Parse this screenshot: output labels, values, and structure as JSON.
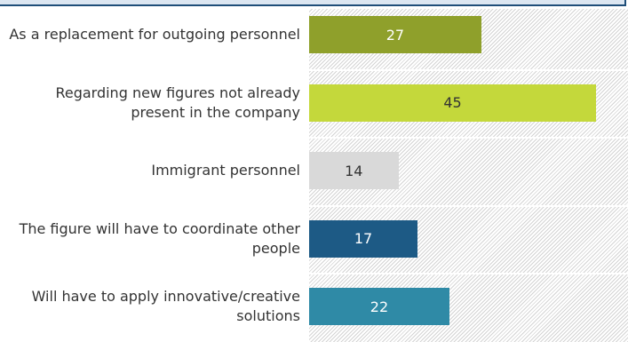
{
  "chart_data": {
    "type": "bar",
    "orientation": "horizontal",
    "categories": [
      "As a replacement for outgoing personnel",
      "Regarding new figures not already present in the company",
      "Immigrant personnel",
      "The figure will have to coordinate other people",
      "Will have to apply innovative/creative solutions"
    ],
    "values": [
      27,
      45,
      14,
      17,
      22
    ],
    "colors": [
      "#8fa02b",
      "#c4d83b",
      "#d9d9d9",
      "#1d5a85",
      "#2f8aa6"
    ],
    "xlim": [
      0,
      50
    ]
  }
}
